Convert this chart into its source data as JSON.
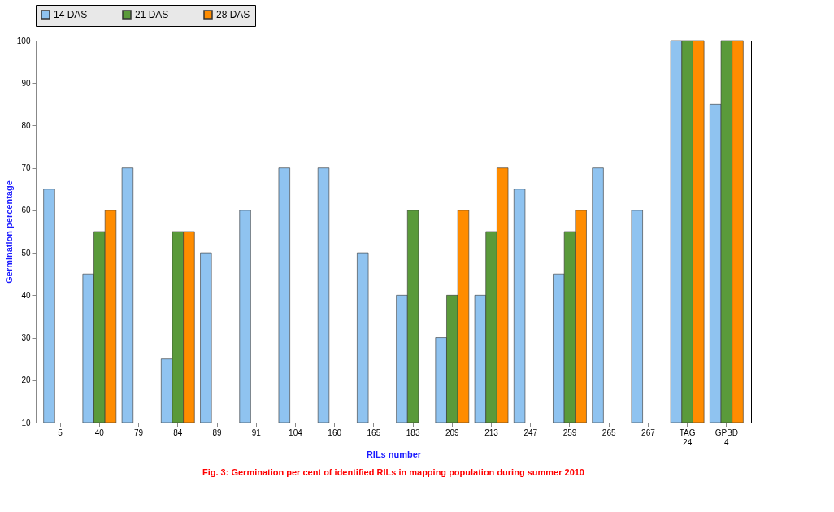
{
  "chart_data": {
    "type": "bar",
    "title": "Fig. 3: Germination per cent of identified RILs in mapping population during summer 2010",
    "xlabel": "RILs number",
    "ylabel": "Germination percentage",
    "categories": [
      "5",
      "40",
      "79",
      "84",
      "89",
      "91",
      "104",
      "160",
      "165",
      "183",
      "209",
      "213",
      "247",
      "259",
      "265",
      "267",
      "TAG 24",
      "GPBD 4"
    ],
    "series": [
      {
        "name": "14 DAS",
        "color": "#8fc3f0",
        "values": [
          65,
          45,
          70,
          25,
          50,
          60,
          70,
          70,
          50,
          40,
          30,
          40,
          65,
          45,
          70,
          60,
          100,
          85
        ]
      },
      {
        "name": "21 DAS",
        "color": "#5a9a3a",
        "values": [
          null,
          55,
          null,
          55,
          null,
          null,
          null,
          null,
          null,
          60,
          40,
          55,
          null,
          55,
          null,
          null,
          100,
          100
        ]
      },
      {
        "name": "28 DAS",
        "color": "#ff8c00",
        "values": [
          null,
          60,
          null,
          55,
          null,
          null,
          null,
          null,
          null,
          null,
          60,
          70,
          null,
          60,
          null,
          null,
          100,
          100
        ]
      }
    ],
    "ylim": [
      10,
      100
    ],
    "yticks": [
      10,
      20,
      30,
      40,
      50,
      60,
      70,
      80,
      90,
      100
    ],
    "grid": false,
    "legend": "top"
  }
}
